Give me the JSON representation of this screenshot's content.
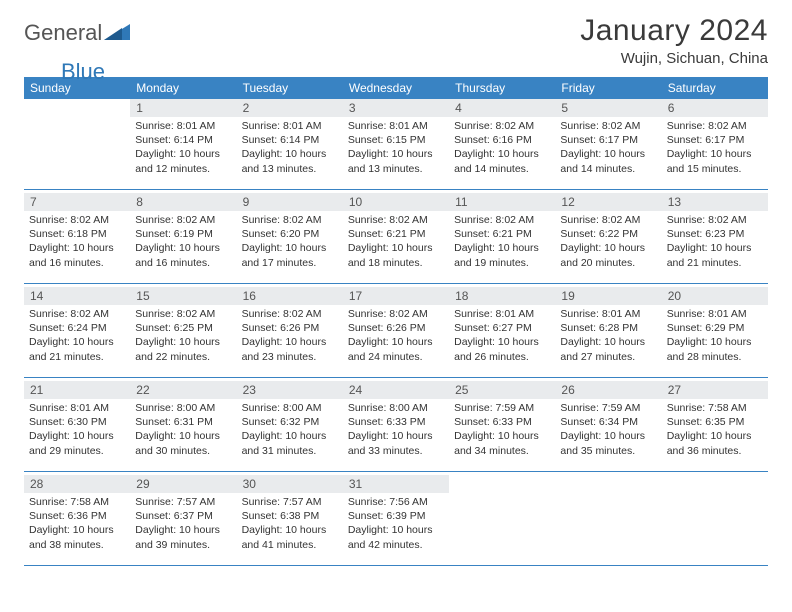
{
  "brand": {
    "general": "General",
    "blue": "Blue"
  },
  "title": {
    "month": "January 2024",
    "location": "Wujin, Sichuan, China"
  },
  "colors": {
    "header_bg": "#3983c3",
    "header_text": "#ffffff",
    "daynum_bg": "#e9ebed",
    "text": "#333333",
    "rule": "#3983c3",
    "brand_blue": "#2f78b7",
    "brand_grey": "#555555",
    "page_bg": "#ffffff"
  },
  "weekdays": [
    "Sunday",
    "Monday",
    "Tuesday",
    "Wednesday",
    "Thursday",
    "Friday",
    "Saturday"
  ],
  "layout": {
    "columns": 7,
    "rows": 5,
    "cell_border_bottom": true,
    "header_fontsize": 12,
    "daynum_fontsize": 12,
    "body_fontsize": 10.5
  },
  "weeks": [
    [
      {
        "day": "",
        "sunrise": "",
        "sunset": "",
        "daylight": ""
      },
      {
        "day": "1",
        "sunrise": "Sunrise: 8:01 AM",
        "sunset": "Sunset: 6:14 PM",
        "daylight": "Daylight: 10 hours and 12 minutes."
      },
      {
        "day": "2",
        "sunrise": "Sunrise: 8:01 AM",
        "sunset": "Sunset: 6:14 PM",
        "daylight": "Daylight: 10 hours and 13 minutes."
      },
      {
        "day": "3",
        "sunrise": "Sunrise: 8:01 AM",
        "sunset": "Sunset: 6:15 PM",
        "daylight": "Daylight: 10 hours and 13 minutes."
      },
      {
        "day": "4",
        "sunrise": "Sunrise: 8:02 AM",
        "sunset": "Sunset: 6:16 PM",
        "daylight": "Daylight: 10 hours and 14 minutes."
      },
      {
        "day": "5",
        "sunrise": "Sunrise: 8:02 AM",
        "sunset": "Sunset: 6:17 PM",
        "daylight": "Daylight: 10 hours and 14 minutes."
      },
      {
        "day": "6",
        "sunrise": "Sunrise: 8:02 AM",
        "sunset": "Sunset: 6:17 PM",
        "daylight": "Daylight: 10 hours and 15 minutes."
      }
    ],
    [
      {
        "day": "7",
        "sunrise": "Sunrise: 8:02 AM",
        "sunset": "Sunset: 6:18 PM",
        "daylight": "Daylight: 10 hours and 16 minutes."
      },
      {
        "day": "8",
        "sunrise": "Sunrise: 8:02 AM",
        "sunset": "Sunset: 6:19 PM",
        "daylight": "Daylight: 10 hours and 16 minutes."
      },
      {
        "day": "9",
        "sunrise": "Sunrise: 8:02 AM",
        "sunset": "Sunset: 6:20 PM",
        "daylight": "Daylight: 10 hours and 17 minutes."
      },
      {
        "day": "10",
        "sunrise": "Sunrise: 8:02 AM",
        "sunset": "Sunset: 6:21 PM",
        "daylight": "Daylight: 10 hours and 18 minutes."
      },
      {
        "day": "11",
        "sunrise": "Sunrise: 8:02 AM",
        "sunset": "Sunset: 6:21 PM",
        "daylight": "Daylight: 10 hours and 19 minutes."
      },
      {
        "day": "12",
        "sunrise": "Sunrise: 8:02 AM",
        "sunset": "Sunset: 6:22 PM",
        "daylight": "Daylight: 10 hours and 20 minutes."
      },
      {
        "day": "13",
        "sunrise": "Sunrise: 8:02 AM",
        "sunset": "Sunset: 6:23 PM",
        "daylight": "Daylight: 10 hours and 21 minutes."
      }
    ],
    [
      {
        "day": "14",
        "sunrise": "Sunrise: 8:02 AM",
        "sunset": "Sunset: 6:24 PM",
        "daylight": "Daylight: 10 hours and 21 minutes."
      },
      {
        "day": "15",
        "sunrise": "Sunrise: 8:02 AM",
        "sunset": "Sunset: 6:25 PM",
        "daylight": "Daylight: 10 hours and 22 minutes."
      },
      {
        "day": "16",
        "sunrise": "Sunrise: 8:02 AM",
        "sunset": "Sunset: 6:26 PM",
        "daylight": "Daylight: 10 hours and 23 minutes."
      },
      {
        "day": "17",
        "sunrise": "Sunrise: 8:02 AM",
        "sunset": "Sunset: 6:26 PM",
        "daylight": "Daylight: 10 hours and 24 minutes."
      },
      {
        "day": "18",
        "sunrise": "Sunrise: 8:01 AM",
        "sunset": "Sunset: 6:27 PM",
        "daylight": "Daylight: 10 hours and 26 minutes."
      },
      {
        "day": "19",
        "sunrise": "Sunrise: 8:01 AM",
        "sunset": "Sunset: 6:28 PM",
        "daylight": "Daylight: 10 hours and 27 minutes."
      },
      {
        "day": "20",
        "sunrise": "Sunrise: 8:01 AM",
        "sunset": "Sunset: 6:29 PM",
        "daylight": "Daylight: 10 hours and 28 minutes."
      }
    ],
    [
      {
        "day": "21",
        "sunrise": "Sunrise: 8:01 AM",
        "sunset": "Sunset: 6:30 PM",
        "daylight": "Daylight: 10 hours and 29 minutes."
      },
      {
        "day": "22",
        "sunrise": "Sunrise: 8:00 AM",
        "sunset": "Sunset: 6:31 PM",
        "daylight": "Daylight: 10 hours and 30 minutes."
      },
      {
        "day": "23",
        "sunrise": "Sunrise: 8:00 AM",
        "sunset": "Sunset: 6:32 PM",
        "daylight": "Daylight: 10 hours and 31 minutes."
      },
      {
        "day": "24",
        "sunrise": "Sunrise: 8:00 AM",
        "sunset": "Sunset: 6:33 PM",
        "daylight": "Daylight: 10 hours and 33 minutes."
      },
      {
        "day": "25",
        "sunrise": "Sunrise: 7:59 AM",
        "sunset": "Sunset: 6:33 PM",
        "daylight": "Daylight: 10 hours and 34 minutes."
      },
      {
        "day": "26",
        "sunrise": "Sunrise: 7:59 AM",
        "sunset": "Sunset: 6:34 PM",
        "daylight": "Daylight: 10 hours and 35 minutes."
      },
      {
        "day": "27",
        "sunrise": "Sunrise: 7:58 AM",
        "sunset": "Sunset: 6:35 PM",
        "daylight": "Daylight: 10 hours and 36 minutes."
      }
    ],
    [
      {
        "day": "28",
        "sunrise": "Sunrise: 7:58 AM",
        "sunset": "Sunset: 6:36 PM",
        "daylight": "Daylight: 10 hours and 38 minutes."
      },
      {
        "day": "29",
        "sunrise": "Sunrise: 7:57 AM",
        "sunset": "Sunset: 6:37 PM",
        "daylight": "Daylight: 10 hours and 39 minutes."
      },
      {
        "day": "30",
        "sunrise": "Sunrise: 7:57 AM",
        "sunset": "Sunset: 6:38 PM",
        "daylight": "Daylight: 10 hours and 41 minutes."
      },
      {
        "day": "31",
        "sunrise": "Sunrise: 7:56 AM",
        "sunset": "Sunset: 6:39 PM",
        "daylight": "Daylight: 10 hours and 42 minutes."
      },
      {
        "day": "",
        "sunrise": "",
        "sunset": "",
        "daylight": ""
      },
      {
        "day": "",
        "sunrise": "",
        "sunset": "",
        "daylight": ""
      },
      {
        "day": "",
        "sunrise": "",
        "sunset": "",
        "daylight": ""
      }
    ]
  ]
}
